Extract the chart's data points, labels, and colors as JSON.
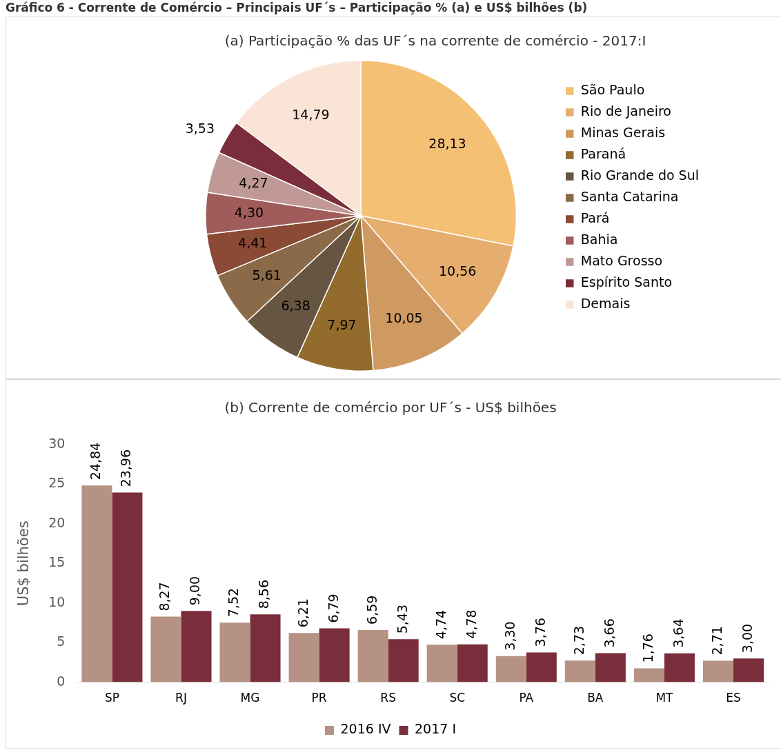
{
  "chart_data": [
    {
      "type": "pie",
      "title": "(a) Participação % das UF´s na corrente de comércio - 2017:I",
      "annotations": [
        "Gráfico 6 - Corrente de Comércio – Principais UF´s – Participação % (a) e US$ bilhões (b)"
      ],
      "categories": [
        "São Paulo",
        "Rio de Janeiro",
        "Minas Gerais",
        "Paraná",
        "Rio Grande do Sul",
        "Santa Catarina",
        "Pará",
        "Bahia",
        "Mato Grosso",
        "Espírito Santo",
        "Demais"
      ],
      "values": [
        28.13,
        10.56,
        10.05,
        7.97,
        6.38,
        5.61,
        4.41,
        4.3,
        4.27,
        3.53,
        14.79
      ],
      "colors": [
        "#f4c074",
        "#e5ae6e",
        "#cf9a62",
        "#936b2d",
        "#665540",
        "#8a6a48",
        "#8b4a36",
        "#a05c5a",
        "#c09896",
        "#7a2d3a",
        "#fae4d6"
      ],
      "value_labels": [
        "28,13",
        "10,56",
        "10,05",
        "7,97",
        "6,38",
        "5,61",
        "4,41",
        "4,30",
        "4,27",
        "3,53",
        "14,79"
      ],
      "legend": "right"
    },
    {
      "type": "bar",
      "title": "(b) Corrente de comércio por UF´s - US$ bilhões",
      "ylabel": "US$ bilhões",
      "categories": [
        "SP",
        "RJ",
        "MG",
        "PR",
        "RS",
        "SC",
        "PA",
        "BA",
        "MT",
        "ES"
      ],
      "series": [
        {
          "name": "2016 IV",
          "color": "#b59283",
          "values": [
            24.84,
            8.27,
            7.52,
            6.21,
            6.59,
            4.74,
            3.3,
            2.73,
            1.76,
            2.71
          ],
          "value_labels": [
            "24,84",
            "8,27",
            "7,52",
            "6,21",
            "6,59",
            "4,74",
            "3,30",
            "2,73",
            "1,76",
            "2,71"
          ]
        },
        {
          "name": "2017 I",
          "color": "#7a2d3a",
          "values": [
            23.96,
            9.0,
            8.56,
            6.79,
            5.43,
            4.78,
            3.76,
            3.66,
            3.64,
            3.0
          ],
          "value_labels": [
            "23,96",
            "9,00",
            "8,56",
            "6,79",
            "5,43",
            "4,78",
            "3,76",
            "3,66",
            "3,64",
            "3,00"
          ]
        }
      ],
      "ylim": [
        0,
        30
      ],
      "yticks": [
        0,
        5,
        10,
        15,
        20,
        25,
        30
      ],
      "grid": false,
      "legend": "bottom"
    }
  ]
}
